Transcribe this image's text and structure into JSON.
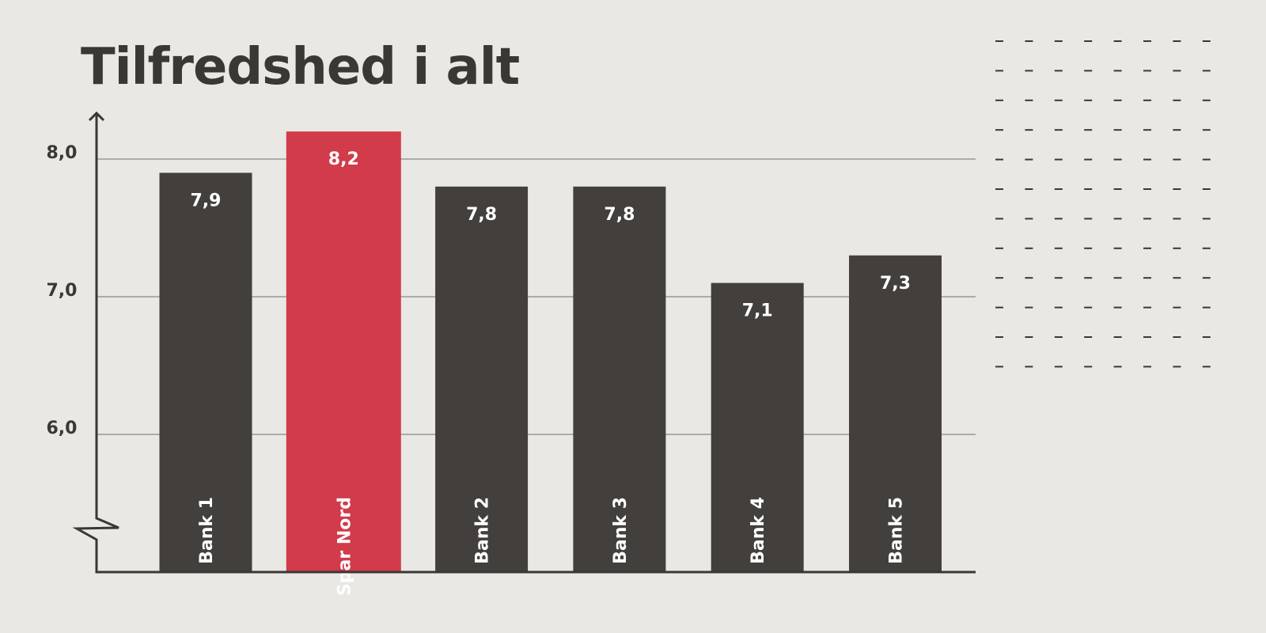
{
  "chart_data": {
    "type": "bar",
    "title": "Tilfredshed i alt",
    "categories": [
      "Bank 1",
      "Spar Nord",
      "Bank 2",
      "Bank 3",
      "Bank 4",
      "Bank 5"
    ],
    "values": [
      7.9,
      8.2,
      7.8,
      7.8,
      7.1,
      7.3
    ],
    "value_labels": [
      "7,9",
      "8,2",
      "7,8",
      "7,8",
      "7,1",
      "7,3"
    ],
    "colors": [
      "#433f3c",
      "#d13b4a",
      "#433f3c",
      "#433f3c",
      "#433f3c",
      "#433f3c"
    ],
    "ylim": [
      5,
      8.3
    ],
    "yticks": [
      {
        "value": 6,
        "label": "6,0"
      },
      {
        "value": 7,
        "label": "7,0"
      },
      {
        "value": 8,
        "label": "8,0"
      }
    ],
    "grid": true
  }
}
